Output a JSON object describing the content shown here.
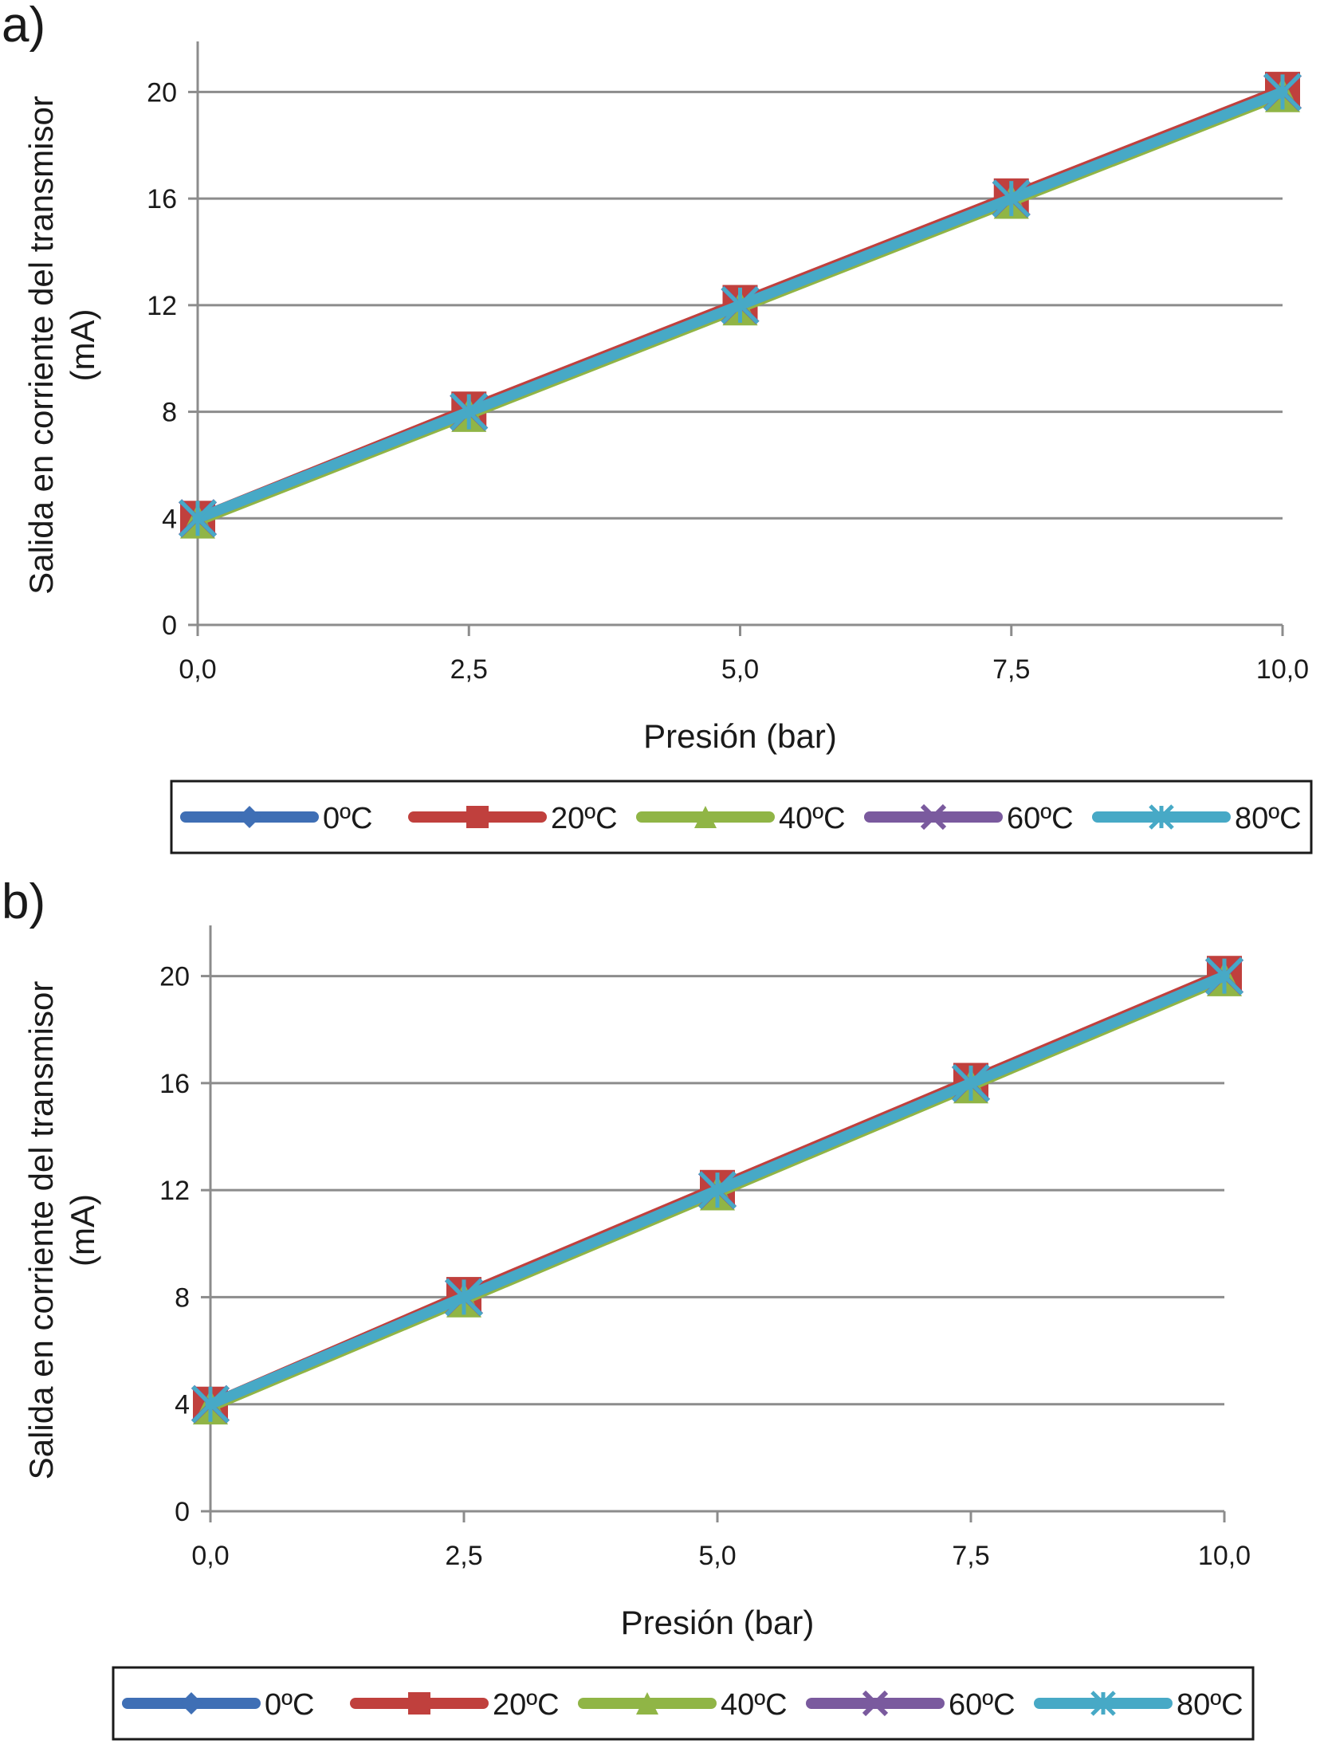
{
  "chart_data": [
    {
      "panel": "a)",
      "type": "line",
      "xlabel": "Presión (bar)",
      "ylabel": "Salida en corriente del transmisor",
      "ylabel_unit": "(mA)",
      "x": [
        0,
        2.5,
        5,
        7.5,
        10
      ],
      "x_tick_labels": [
        "0,0",
        "2,5",
        "5,0",
        "7,5",
        "10,0"
      ],
      "y_ticks": [
        0,
        4,
        8,
        12,
        16,
        20
      ],
      "xlim": [
        0,
        10
      ],
      "ylim": [
        0,
        21
      ],
      "grid": "horizontal",
      "legend_position": "bottom",
      "series": [
        {
          "name": "0ºC",
          "color": "#3f6fb5",
          "marker": "diamond",
          "values": [
            4,
            8,
            12,
            16,
            20
          ]
        },
        {
          "name": "20ºC",
          "color": "#c0403d",
          "marker": "square",
          "values": [
            4,
            8.1,
            12.1,
            16.1,
            20.1
          ]
        },
        {
          "name": "40ºC",
          "color": "#90b546",
          "marker": "triangle",
          "values": [
            3.9,
            7.9,
            11.9,
            15.9,
            19.9
          ]
        },
        {
          "name": "60ºC",
          "color": "#7a5a9e",
          "marker": "x",
          "values": [
            4,
            8,
            12,
            16,
            20
          ]
        },
        {
          "name": "80ºC",
          "color": "#47a9c6",
          "marker": "star",
          "values": [
            4,
            8,
            12,
            16,
            20
          ]
        }
      ]
    },
    {
      "panel": "b)",
      "type": "line",
      "xlabel": "Presión (bar)",
      "ylabel": "Salida en corriente del transmisor",
      "ylabel_unit": "(mA)",
      "x": [
        0,
        2.5,
        5,
        7.5,
        10
      ],
      "x_tick_labels": [
        "0,0",
        "2,5",
        "5,0",
        "7,5",
        "10,0"
      ],
      "y_ticks": [
        0,
        4,
        8,
        12,
        16,
        20
      ],
      "xlim": [
        0,
        10
      ],
      "ylim": [
        0,
        21
      ],
      "grid": "horizontal",
      "legend_position": "bottom",
      "series": [
        {
          "name": "0ºC",
          "color": "#3f6fb5",
          "marker": "diamond",
          "values": [
            4,
            8,
            12,
            16,
            20
          ]
        },
        {
          "name": "20ºC",
          "color": "#c0403d",
          "marker": "square",
          "values": [
            4,
            8.1,
            12.1,
            16.1,
            20.1
          ]
        },
        {
          "name": "40ºC",
          "color": "#90b546",
          "marker": "triangle",
          "values": [
            3.9,
            7.9,
            11.9,
            15.9,
            19.9
          ]
        },
        {
          "name": "60ºC",
          "color": "#7a5a9e",
          "marker": "x",
          "values": [
            4,
            8,
            12,
            16,
            20
          ]
        },
        {
          "name": "80ºC",
          "color": "#47a9c6",
          "marker": "star",
          "values": [
            4,
            8,
            12,
            16,
            20
          ]
        }
      ]
    }
  ]
}
